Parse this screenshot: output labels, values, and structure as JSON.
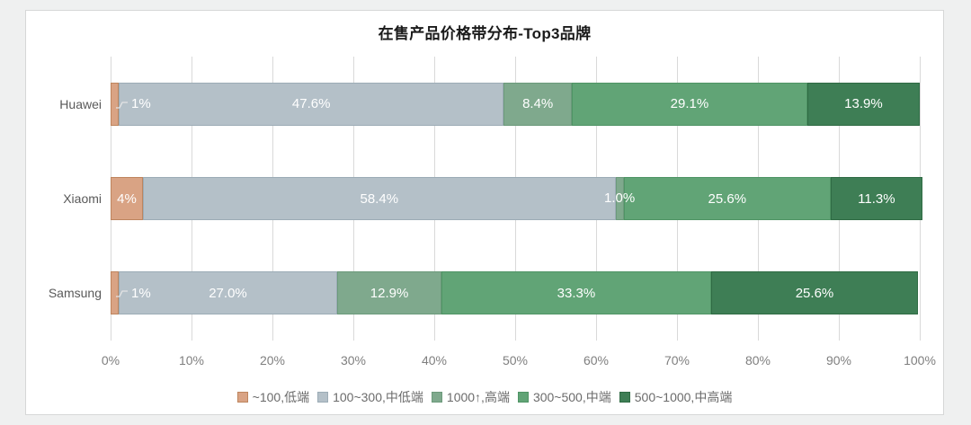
{
  "chart_data": {
    "type": "bar",
    "orientation": "horizontal",
    "stacked": true,
    "title": "在售产品价格带分布-Top3品牌",
    "categories": [
      "Huawei",
      "Xiaomi",
      "Samsung"
    ],
    "series": [
      {
        "name": "~100,低端",
        "color": "#D9A384",
        "border_color": "#BE855E",
        "values": [
          1,
          4,
          1
        ],
        "labels": [
          {
            "text": "1%",
            "placement": "callout"
          },
          {
            "text": "4%",
            "placement": "center"
          },
          {
            "text": "1%",
            "placement": "callout"
          }
        ]
      },
      {
        "name": "100~300,中低端",
        "color": "#B4C0C8",
        "border_color": "#9CACB6",
        "values": [
          47.6,
          58.4,
          27.0
        ],
        "labels": [
          {
            "text": "47.6%",
            "placement": "center"
          },
          {
            "text": "58.4%",
            "placement": "center"
          },
          {
            "text": "27.0%",
            "placement": "center"
          }
        ]
      },
      {
        "name": "1000↑,高端",
        "color": "#7FA98D",
        "border_color": "#6C9A7B",
        "values": [
          8.4,
          1.0,
          12.9
        ],
        "labels": [
          {
            "text": "8.4%",
            "placement": "center"
          },
          {
            "text": "1.0%",
            "placement": "overflow"
          },
          {
            "text": "12.9%",
            "placement": "center"
          }
        ]
      },
      {
        "name": "300~500,中端",
        "color": "#61A476",
        "border_color": "#4F9465",
        "values": [
          29.1,
          25.6,
          33.3
        ],
        "labels": [
          {
            "text": "29.1%",
            "placement": "center"
          },
          {
            "text": "25.6%",
            "placement": "center"
          },
          {
            "text": "33.3%",
            "placement": "center"
          }
        ]
      },
      {
        "name": "500~1000,中高端",
        "color": "#3E7E55",
        "border_color": "#2F6B44",
        "values": [
          13.9,
          11.3,
          25.6
        ],
        "labels": [
          {
            "text": "13.9%",
            "placement": "center"
          },
          {
            "text": "11.3%",
            "placement": "center"
          },
          {
            "text": "25.6%",
            "placement": "center"
          }
        ]
      }
    ],
    "x_axis": {
      "min": 0,
      "max": 100,
      "tick_labels": [
        "0%",
        "10%",
        "20%",
        "30%",
        "40%",
        "50%",
        "60%",
        "70%",
        "80%",
        "90%",
        "100%"
      ]
    },
    "grid": true,
    "legend_position": "bottom",
    "data_label_color": "#ffffff"
  }
}
